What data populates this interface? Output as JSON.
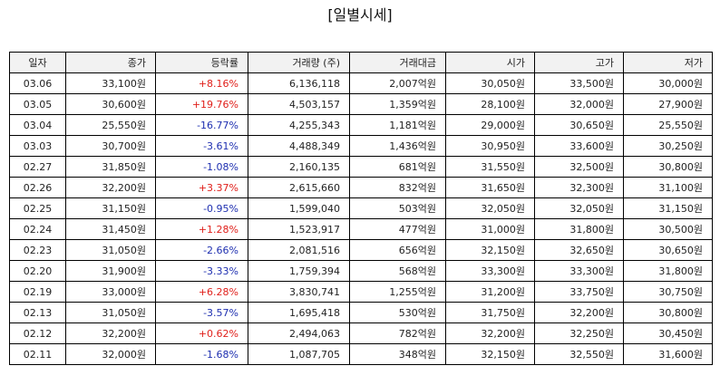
{
  "title": "[일별시세]",
  "colors": {
    "up": "#e0201b",
    "down": "#1e2fb0"
  },
  "headers": [
    "일자",
    "종가",
    "등락률",
    "거래량 (주)",
    "거래대금",
    "시가",
    "고가",
    "저가"
  ],
  "rows": [
    {
      "date": "03.06",
      "close": "33,100원",
      "change": "+8.16%",
      "direction": "up",
      "volume": "6,136,118",
      "value": "2,007억원",
      "open": "30,050원",
      "high": "33,500원",
      "low": "30,000원"
    },
    {
      "date": "03.05",
      "close": "30,600원",
      "change": "+19.76%",
      "direction": "up",
      "volume": "4,503,157",
      "value": "1,359억원",
      "open": "28,100원",
      "high": "32,000원",
      "low": "27,900원"
    },
    {
      "date": "03.04",
      "close": "25,550원",
      "change": "-16.77%",
      "direction": "down",
      "volume": "4,255,343",
      "value": "1,181억원",
      "open": "29,000원",
      "high": "30,650원",
      "low": "25,550원"
    },
    {
      "date": "03.03",
      "close": "30,700원",
      "change": "-3.61%",
      "direction": "down",
      "volume": "4,488,349",
      "value": "1,436억원",
      "open": "30,950원",
      "high": "33,600원",
      "low": "30,250원"
    },
    {
      "date": "02.27",
      "close": "31,850원",
      "change": "-1.08%",
      "direction": "down",
      "volume": "2,160,135",
      "value": "681억원",
      "open": "31,550원",
      "high": "32,500원",
      "low": "30,800원"
    },
    {
      "date": "02.26",
      "close": "32,200원",
      "change": "+3.37%",
      "direction": "up",
      "volume": "2,615,660",
      "value": "832억원",
      "open": "31,650원",
      "high": "32,300원",
      "low": "31,100원"
    },
    {
      "date": "02.25",
      "close": "31,150원",
      "change": "-0.95%",
      "direction": "down",
      "volume": "1,599,040",
      "value": "503억원",
      "open": "32,050원",
      "high": "32,050원",
      "low": "31,150원"
    },
    {
      "date": "02.24",
      "close": "31,450원",
      "change": "+1.28%",
      "direction": "up",
      "volume": "1,523,917",
      "value": "477억원",
      "open": "31,000원",
      "high": "31,800원",
      "low": "30,500원"
    },
    {
      "date": "02.23",
      "close": "31,050원",
      "change": "-2.66%",
      "direction": "down",
      "volume": "2,081,516",
      "value": "656억원",
      "open": "32,150원",
      "high": "32,650원",
      "low": "30,650원"
    },
    {
      "date": "02.20",
      "close": "31,900원",
      "change": "-3.33%",
      "direction": "down",
      "volume": "1,759,394",
      "value": "568억원",
      "open": "33,300원",
      "high": "33,300원",
      "low": "31,800원"
    },
    {
      "date": "02.19",
      "close": "33,000원",
      "change": "+6.28%",
      "direction": "up",
      "volume": "3,830,741",
      "value": "1,255억원",
      "open": "31,200원",
      "high": "33,750원",
      "low": "30,750원"
    },
    {
      "date": "02.13",
      "close": "31,050원",
      "change": "-3.57%",
      "direction": "down",
      "volume": "1,695,418",
      "value": "530억원",
      "open": "31,750원",
      "high": "32,200원",
      "low": "30,800원"
    },
    {
      "date": "02.12",
      "close": "32,200원",
      "change": "+0.62%",
      "direction": "up",
      "volume": "2,494,063",
      "value": "782억원",
      "open": "32,200원",
      "high": "32,250원",
      "low": "30,450원"
    },
    {
      "date": "02.11",
      "close": "32,000원",
      "change": "-1.68%",
      "direction": "down",
      "volume": "1,087,705",
      "value": "348억원",
      "open": "32,150원",
      "high": "32,550원",
      "low": "31,600원"
    }
  ]
}
